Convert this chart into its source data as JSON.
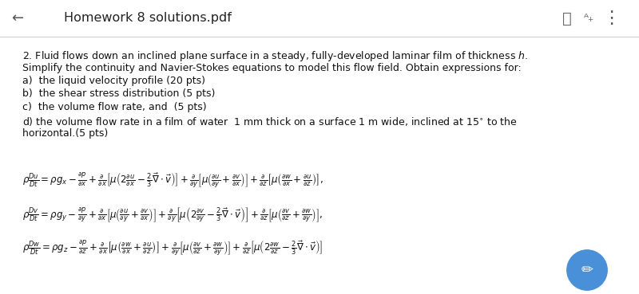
{
  "bg_color": "#ffffff",
  "header_text": "Homework 8 solutions.pdf",
  "header_arrow": "←",
  "header_bg": "#f8f8f8",
  "header_line_color": "#cccccc",
  "body_lines": [
    "2. Fluid flows down an inclined plane surface in a steady, fully-developed laminar film of thickness $h$.",
    "Simplify the continuity and Navier-Stokes equations to model this flow field. Obtain expressions for:",
    "a)  the liquid velocity profile (20 pts)",
    "b)  the shear stress distribution (5 pts)",
    "c)  the volume flow rate, and  (5 pts)",
    "d) the volume flow rate in a film of water  1 mm thick on a surface 1 m wide, inclined at $15^{\\circ}$ to the",
    "horizontal.(5 pts)"
  ],
  "eq1": "$\\rho\\frac{Du}{Dt} = \\rho g_x - \\frac{\\partial p}{\\partial x} + \\frac{\\partial}{\\partial x}\\left[\\mu\\left(2\\frac{\\partial u}{\\partial x} - \\frac{2}{3}\\vec{\\nabla}\\cdot\\vec{v}\\right)\\right] + \\frac{\\partial}{\\partial y}\\left[\\mu\\left(\\frac{\\partial u}{\\partial y} + \\frac{\\partial v}{\\partial x}\\right)\\right] + \\frac{\\partial}{\\partial z}\\left[\\mu\\left(\\frac{\\partial w}{\\partial x} + \\frac{\\partial u}{\\partial z}\\right)\\right],$",
  "eq2": "$\\rho\\frac{Dv}{Dt} = \\rho g_y - \\frac{\\partial p}{\\partial y} + \\frac{\\partial}{\\partial x}\\left[\\mu\\left(\\frac{\\partial u}{\\partial y} + \\frac{\\partial v}{\\partial x}\\right)\\right] + \\frac{\\partial}{\\partial y}\\left[\\mu\\left(2\\frac{\\partial v}{\\partial y} - \\frac{2}{3}\\vec{\\nabla}\\cdot\\vec{v}\\right)\\right] + \\frac{\\partial}{\\partial z}\\left[\\mu\\left(\\frac{\\partial v}{\\partial z} + \\frac{\\partial w}{\\partial y}\\right)\\right],$",
  "eq3": "$\\rho\\frac{Dw}{Dt} = \\rho g_z - \\frac{\\partial p}{\\partial z} + \\frac{\\partial}{\\partial x}\\left[\\mu\\left(\\frac{\\partial w}{\\partial x} + \\frac{\\partial u}{\\partial z}\\right)\\right] + \\frac{\\partial}{\\partial y}\\left[\\mu\\left(\\frac{\\partial v}{\\partial z} + \\frac{\\partial w}{\\partial y}\\right)\\right] + \\frac{\\partial}{\\partial z}\\left[\\mu\\left(2\\frac{\\partial w}{\\partial z} - \\frac{2}{3}\\vec{\\nabla}\\cdot\\vec{v}\\right)\\right]$",
  "text_color": "#111111",
  "header_color": "#222222",
  "body_fontsize": 9.0,
  "header_fontsize": 11.5,
  "eq_fontsize": 8.5,
  "pencil_color": "#4a90d9"
}
